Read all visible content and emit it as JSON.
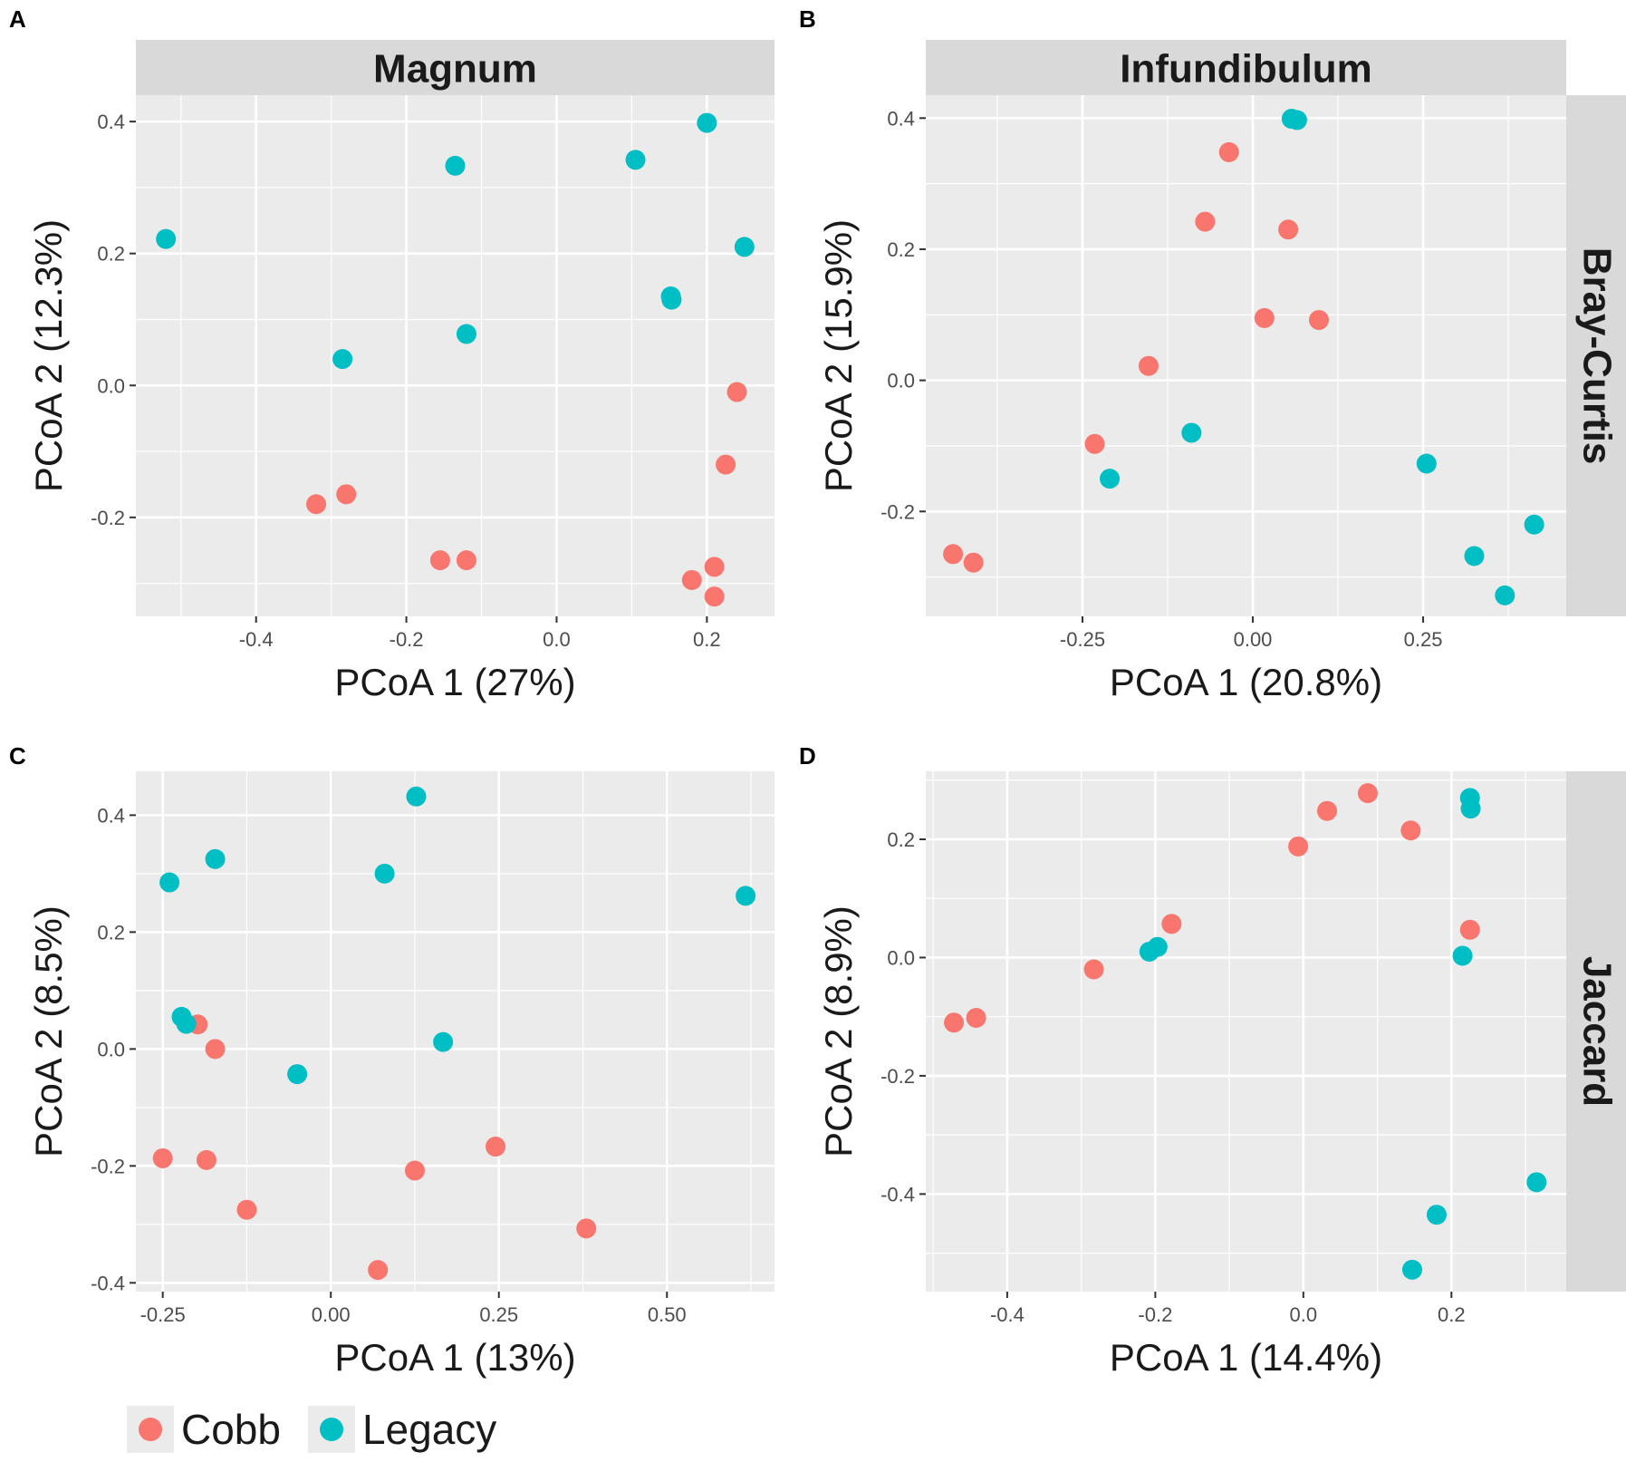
{
  "colors": {
    "cobb": "#f8766d",
    "legacy": "#00bfc4",
    "panel_bg": "#ebebeb",
    "strip_bg": "#d9d9d9",
    "grid": "#ffffff"
  },
  "legend": {
    "items": [
      {
        "label": "Cobb",
        "color": "#f8766d"
      },
      {
        "label": "Legacy",
        "color": "#00bfc4"
      }
    ]
  },
  "chart_data": [
    {
      "type": "scatter",
      "panel_label": "A",
      "title": "Magnum",
      "row_strip": "",
      "xlabel": "PCoA 1 (27%)",
      "ylabel": "PCoA 2 (12.3%)",
      "xlim": [
        -0.56,
        0.29
      ],
      "ylim": [
        -0.35,
        0.44
      ],
      "xticks": [
        -0.4,
        -0.2,
        0.0,
        0.2
      ],
      "xtick_labels": [
        "-0.4",
        "-0.2",
        "0.0",
        "0.2"
      ],
      "yticks": [
        -0.2,
        0.0,
        0.2,
        0.4
      ],
      "ytick_labels": [
        "-0.2",
        "0.0",
        "0.2",
        "0.4"
      ],
      "series": [
        {
          "name": "Cobb",
          "points": [
            [
              -0.32,
              -0.18
            ],
            [
              -0.28,
              -0.165
            ],
            [
              -0.155,
              -0.265
            ],
            [
              -0.12,
              -0.265
            ],
            [
              0.24,
              -0.01
            ],
            [
              0.225,
              -0.12
            ],
            [
              0.21,
              -0.275
            ],
            [
              0.18,
              -0.295
            ],
            [
              0.21,
              -0.32
            ]
          ]
        },
        {
          "name": "Legacy",
          "points": [
            [
              -0.52,
              0.222
            ],
            [
              -0.135,
              0.333
            ],
            [
              -0.285,
              0.04
            ],
            [
              -0.12,
              0.078
            ],
            [
              0.105,
              0.342
            ],
            [
              0.2,
              0.398
            ],
            [
              0.25,
              0.21
            ],
            [
              0.152,
              0.135
            ],
            [
              0.153,
              0.13
            ]
          ]
        }
      ]
    },
    {
      "type": "scatter",
      "panel_label": "B",
      "title": "Infundibulum",
      "row_strip": "Bray-Curtis",
      "xlabel": "PCoA 1 (20.8%)",
      "ylabel": "PCoA 2 (15.9%)",
      "xlim": [
        -0.48,
        0.46
      ],
      "ylim": [
        -0.36,
        0.435
      ],
      "xticks": [
        -0.25,
        0.0,
        0.25
      ],
      "xtick_labels": [
        "-0.25",
        "0.00",
        "0.25"
      ],
      "yticks": [
        -0.2,
        0.0,
        0.2,
        0.4
      ],
      "ytick_labels": [
        "-0.2",
        "0.0",
        "0.2",
        "0.4"
      ],
      "series": [
        {
          "name": "Cobb",
          "points": [
            [
              -0.44,
              -0.265
            ],
            [
              -0.41,
              -0.278
            ],
            [
              -0.232,
              -0.097
            ],
            [
              -0.153,
              0.022
            ],
            [
              -0.035,
              0.348
            ],
            [
              -0.07,
              0.242
            ],
            [
              0.052,
              0.23
            ],
            [
              0.017,
              0.095
            ],
            [
              0.097,
              0.092
            ]
          ]
        },
        {
          "name": "Legacy",
          "points": [
            [
              0.057,
              0.399
            ],
            [
              0.065,
              0.397
            ],
            [
              -0.09,
              -0.08
            ],
            [
              -0.21,
              -0.15
            ],
            [
              0.255,
              -0.127
            ],
            [
              0.325,
              -0.268
            ],
            [
              0.37,
              -0.328
            ],
            [
              0.413,
              -0.22
            ]
          ]
        }
      ]
    },
    {
      "type": "scatter",
      "panel_label": "C",
      "title": "",
      "row_strip": "",
      "xlabel": "PCoA 1 (13%)",
      "ylabel": "PCoA 2 (8.5%)",
      "xlim": [
        -0.29,
        0.66
      ],
      "ylim": [
        -0.415,
        0.475
      ],
      "xticks": [
        -0.25,
        0.0,
        0.25,
        0.5
      ],
      "xtick_labels": [
        "-0.25",
        "0.00",
        "0.25",
        "0.50"
      ],
      "yticks": [
        -0.4,
        -0.2,
        0.0,
        0.2,
        0.4
      ],
      "ytick_labels": [
        "-0.4",
        "-0.2",
        "0.0",
        "0.2",
        "0.4"
      ],
      "series": [
        {
          "name": "Cobb",
          "points": [
            [
              -0.198,
              0.042
            ],
            [
              -0.172,
              0.0
            ],
            [
              -0.25,
              -0.187
            ],
            [
              -0.185,
              -0.19
            ],
            [
              -0.125,
              -0.275
            ],
            [
              0.125,
              -0.208
            ],
            [
              0.245,
              -0.167
            ],
            [
              0.07,
              -0.378
            ],
            [
              0.38,
              -0.307
            ]
          ]
        },
        {
          "name": "Legacy",
          "points": [
            [
              -0.24,
              0.285
            ],
            [
              -0.172,
              0.325
            ],
            [
              0.08,
              0.3
            ],
            [
              0.127,
              0.432
            ],
            [
              0.617,
              0.262
            ],
            [
              -0.222,
              0.055
            ],
            [
              -0.215,
              0.043
            ],
            [
              -0.05,
              -0.043
            ],
            [
              0.167,
              0.012
            ]
          ]
        }
      ]
    },
    {
      "type": "scatter",
      "panel_label": "D",
      "title": "",
      "row_strip": "Jaccard",
      "xlabel": "PCoA 1 (14.4%)",
      "ylabel": "PCoA 2 (8.9%)",
      "xlim": [
        -0.51,
        0.355
      ],
      "ylim": [
        -0.565,
        0.315
      ],
      "xticks": [
        -0.4,
        -0.2,
        0.0,
        0.2
      ],
      "xtick_labels": [
        "-0.4",
        "-0.2",
        "0.0",
        "0.2"
      ],
      "yticks": [
        -0.4,
        -0.2,
        0.0,
        0.2
      ],
      "ytick_labels": [
        "-0.4",
        "-0.2",
        "0.0",
        "0.2"
      ],
      "series": [
        {
          "name": "Cobb",
          "points": [
            [
              -0.472,
              -0.11
            ],
            [
              -0.442,
              -0.102
            ],
            [
              -0.283,
              -0.02
            ],
            [
              -0.178,
              0.057
            ],
            [
              -0.007,
              0.188
            ],
            [
              0.032,
              0.248
            ],
            [
              0.087,
              0.278
            ],
            [
              0.145,
              0.215
            ],
            [
              0.225,
              0.047
            ]
          ]
        },
        {
          "name": "Legacy",
          "points": [
            [
              -0.208,
              0.01
            ],
            [
              -0.197,
              0.018
            ],
            [
              0.215,
              0.003
            ],
            [
              0.225,
              0.27
            ],
            [
              0.226,
              0.252
            ],
            [
              0.315,
              -0.38
            ],
            [
              0.18,
              -0.435
            ],
            [
              0.147,
              -0.528
            ]
          ]
        }
      ]
    }
  ]
}
